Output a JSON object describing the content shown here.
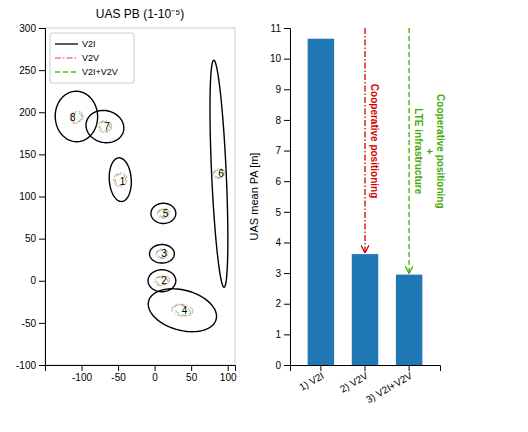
{
  "chart_data": [
    {
      "type": "ellipse",
      "title": "UAS PB (1-10⁻⁵)",
      "xlim": [
        -150,
        110
      ],
      "ylim": [
        -100,
        300
      ],
      "xticks": [
        -100,
        -50,
        0,
        50,
        100
      ],
      "yticks": [
        -100,
        -50,
        0,
        50,
        100,
        150,
        200,
        250,
        300
      ],
      "legend": "upper left",
      "series": [
        {
          "name": "V2I",
          "color": "#000000",
          "line_style": "solid",
          "cx": [
            -107,
            -68,
            -47,
            10,
            10,
            12,
            38,
            88
          ],
          "cy": [
            195,
            183,
            120,
            0,
            32,
            80,
            -35,
            127
          ],
          "w": [
            58,
            52,
            30,
            38,
            34,
            34,
            95,
            20
          ],
          "h": [
            60,
            38,
            52,
            26,
            22,
            24,
            48,
            270
          ],
          "angle": [
            10,
            -8,
            5,
            0,
            0,
            0,
            -12,
            3
          ]
        },
        {
          "name": "V2V",
          "color": "#ff69b4",
          "line_style": "dash-dot",
          "cx": [
            -107,
            -68,
            -47,
            10,
            10,
            12,
            38,
            88
          ],
          "cy": [
            194,
            183,
            120,
            0,
            32,
            80,
            -35,
            127
          ],
          "w": [
            18.4,
            18.4,
            18.4,
            20.7,
            16.1,
            16.1,
            28.75,
            16.1
          ],
          "h": [
            13.8,
            13.8,
            16.1,
            11.5,
            11.5,
            11.5,
            13.8,
            11.5
          ],
          "angle": [
            16,
            -2,
            11,
            6,
            6,
            6,
            -6,
            9
          ]
        },
        {
          "name": "V2I+V2V",
          "color": "#33cc00",
          "line_style": "dashed",
          "cx": [
            -107,
            -68,
            -47,
            10,
            10,
            12,
            38,
            88
          ],
          "cy": [
            194,
            183,
            120,
            0,
            32,
            80,
            -35,
            127
          ],
          "w": [
            14.4,
            14.4,
            14.4,
            16.2,
            12.6,
            12.6,
            22.5,
            12.6
          ],
          "h": [
            10.8,
            10.8,
            12.6,
            9,
            9,
            9,
            10.8,
            9
          ],
          "angle": [
            4,
            -14,
            -1,
            -6,
            -6,
            -6,
            -18,
            -3
          ]
        }
      ],
      "annotations": [
        {
          "text": "8",
          "x": -112,
          "y": 194
        },
        {
          "text": "7",
          "x": -65,
          "y": 183
        },
        {
          "text": "1",
          "x": -44,
          "y": 118
        },
        {
          "text": "2",
          "x": 13,
          "y": 0
        },
        {
          "text": "3",
          "x": 13,
          "y": 32
        },
        {
          "text": "5",
          "x": 15,
          "y": 80
        },
        {
          "text": "4",
          "x": 41,
          "y": -35
        },
        {
          "text": "6",
          "x": 91,
          "y": 127
        }
      ]
    },
    {
      "type": "bar",
      "categories": [
        "1) V2I",
        "2) V2V",
        "3) V2I+V2V"
      ],
      "values": [
        10.65,
        3.62,
        2.95
      ],
      "color": "#1f77b4",
      "ylim": [
        0,
        11
      ],
      "yticks": [
        0,
        1,
        2,
        3,
        4,
        5,
        6,
        7,
        8,
        9,
        10,
        11
      ],
      "ylabel": "UAS mean PA [m]",
      "annotations": [
        {
          "category": "2) V2V",
          "color": "#cc0000",
          "line_style": "dash-dot",
          "texts": [
            "Cooperative positioning"
          ]
        },
        {
          "category": "3) V2I+V2V",
          "color": "#44aa00",
          "line_style": "dashed",
          "texts": [
            "LTE infrastructure",
            "+",
            "Cooperative positioning"
          ]
        }
      ]
    }
  ]
}
